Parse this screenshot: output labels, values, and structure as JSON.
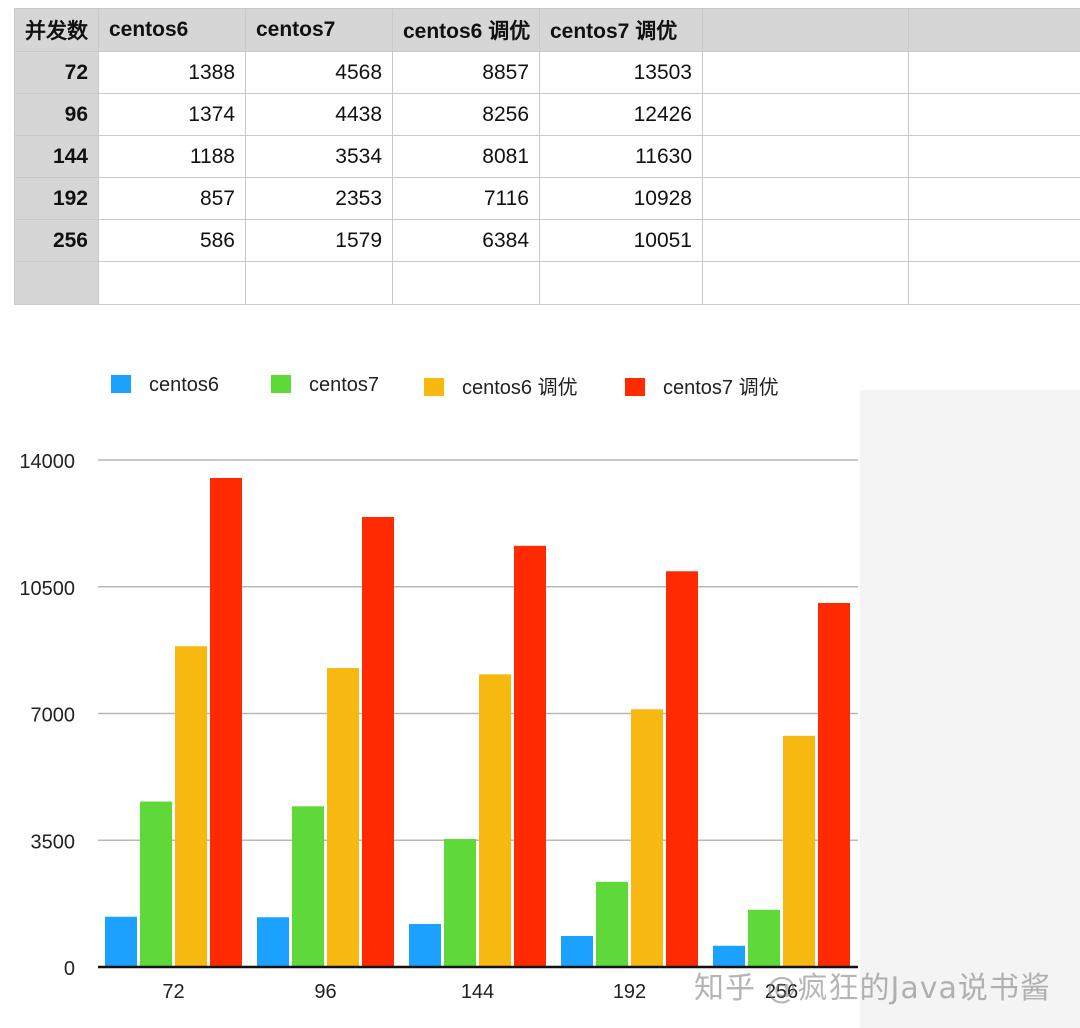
{
  "table": {
    "headers": [
      "并发数",
      "centos6",
      "centos7",
      "centos6 调优",
      "centos7 调优",
      "",
      ""
    ],
    "rows": [
      [
        "72",
        "1388",
        "4568",
        "8857",
        "13503",
        "",
        ""
      ],
      [
        "96",
        "1374",
        "4438",
        "8256",
        "12426",
        "",
        ""
      ],
      [
        "144",
        "1188",
        "3534",
        "8081",
        "11630",
        "",
        ""
      ],
      [
        "192",
        "857",
        "2353",
        "7116",
        "10928",
        "",
        ""
      ],
      [
        "256",
        "586",
        "1579",
        "6384",
        "10051",
        "",
        ""
      ],
      [
        "",
        "",
        "",
        "",
        "",
        "",
        ""
      ]
    ]
  },
  "chart_data": {
    "type": "bar",
    "categories": [
      "72",
      "96",
      "144",
      "192",
      "256"
    ],
    "series": [
      {
        "name": "centos6",
        "color": "#1ba1ff",
        "values": [
          1388,
          1374,
          1188,
          857,
          586
        ]
      },
      {
        "name": "centos7",
        "color": "#5fd93a",
        "values": [
          4568,
          4438,
          3534,
          2353,
          1579
        ]
      },
      {
        "name": "centos6 调优",
        "color": "#f7b90f",
        "values": [
          8857,
          8256,
          8081,
          7116,
          6384
        ]
      },
      {
        "name": "centos7 调优",
        "color": "#ff2a00",
        "values": [
          13503,
          12426,
          11630,
          10928,
          10051
        ]
      }
    ],
    "yticks": [
      "0",
      "3500",
      "7000",
      "10500",
      "14000"
    ],
    "ylim": [
      0,
      14000
    ],
    "grid": true,
    "legend": "top-left"
  },
  "watermark": "知乎 @疯狂的Java说书酱"
}
